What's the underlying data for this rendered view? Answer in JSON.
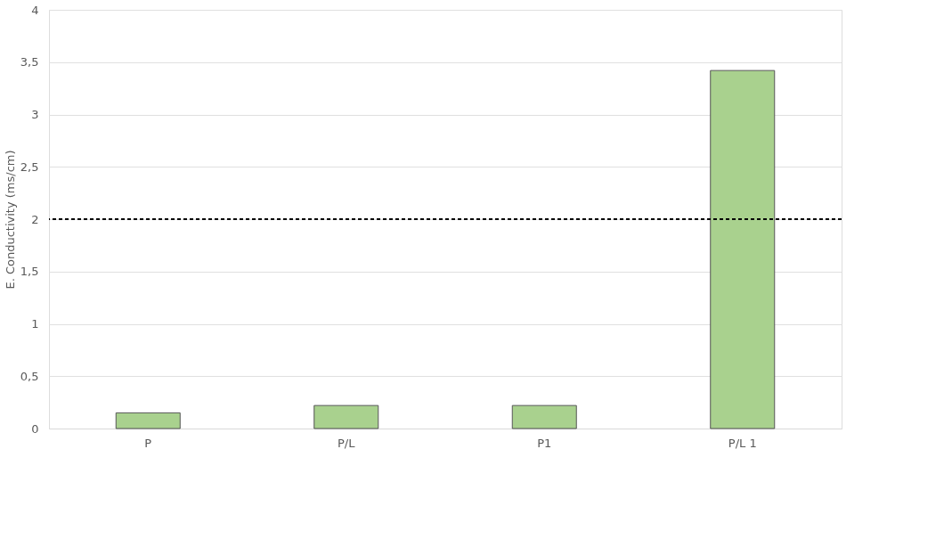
{
  "chart_data": {
    "type": "bar",
    "ylabel": "E. Conductivity (ms/cm)",
    "categories": [
      "P",
      "P/L",
      "P1",
      "P/L 1"
    ],
    "values": [
      0.15,
      0.22,
      0.22,
      3.42
    ],
    "color": "#a9d18e",
    "ylim": [
      0,
      4
    ],
    "yticks": [
      0,
      {
        "value": 0.5,
        "label": "0,5"
      },
      1,
      {
        "value": 1.5,
        "label": "1,5"
      },
      2,
      {
        "value": 2.5,
        "label": "2,5"
      },
      3,
      {
        "value": 3.5,
        "label": "3,5"
      },
      4
    ],
    "grid": "y",
    "ref_lines": [
      {
        "axis": "y",
        "value": 2,
        "color": "#000000",
        "line_style": "dashed"
      }
    ]
  }
}
